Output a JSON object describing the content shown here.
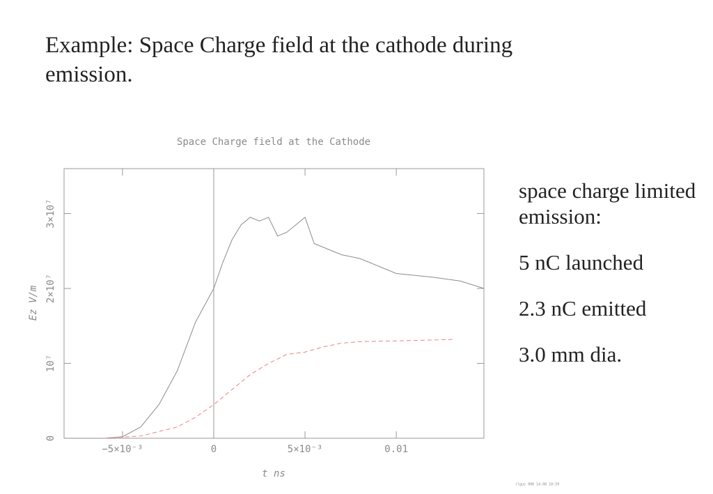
{
  "heading": "Example: Space Charge field at the cathode during emission.",
  "notes": [
    "space charge limited emission:",
    "5 nC launched",
    "2.3 nC emitted",
    "3.0 mm dia."
  ],
  "footer": "rlgus 900 14.08 10:59",
  "chart_data": {
    "type": "line",
    "title": "Space Charge field at the Cathode",
    "x_label": "t ns",
    "y_label": "Ez V/m",
    "xlim": [
      -0.0082,
      0.0148
    ],
    "ylim": [
      0,
      36000000
    ],
    "xticks": [
      {
        "value": -0.005,
        "label": "−5×10⁻³"
      },
      0,
      {
        "value": 0.005,
        "label": "5×10⁻³"
      },
      0.01
    ],
    "yticks": [
      0,
      {
        "value": 10000000,
        "label": "10⁷"
      },
      {
        "value": 20000000,
        "label": "2×10⁷"
      },
      {
        "value": 30000000,
        "label": "3×10⁷"
      }
    ],
    "series": [
      {
        "color": "#8c8c8c",
        "dash": false,
        "x": [
          -0.0082,
          -0.006,
          -0.005,
          -0.004,
          -0.003,
          -0.002,
          -0.001,
          0,
          0.0005,
          0.001,
          0.0015,
          0.002,
          0.0025,
          0.003,
          0.0035,
          0.004,
          0.0045,
          0.005,
          0.0055,
          0.006,
          0.007,
          0.008,
          0.009,
          0.01,
          0.012,
          0.0135,
          0.0148
        ],
        "values": [
          0,
          0,
          200000,
          1500000,
          4500000,
          9000000,
          15500000,
          20000000,
          23500000,
          26500000,
          28500000,
          29500000,
          29000000,
          29500000,
          27000000,
          27500000,
          28500000,
          29500000,
          26000000,
          25500000,
          24500000,
          24000000,
          23000000,
          22000000,
          21500000,
          21000000,
          20000000
        ]
      },
      {
        "color": "#f08080",
        "dash": true,
        "x": [
          -0.006,
          -0.004,
          -0.002,
          -0.001,
          0,
          0.001,
          0.002,
          0.003,
          0.004,
          0.005,
          0.006,
          0.007,
          0.008,
          0.01,
          0.0132
        ],
        "values": [
          0,
          300000,
          1500000,
          2800000,
          4500000,
          6500000,
          8500000,
          10000000,
          11200000,
          11500000,
          12200000,
          12700000,
          12900000,
          13000000,
          13200000
        ]
      }
    ]
  }
}
